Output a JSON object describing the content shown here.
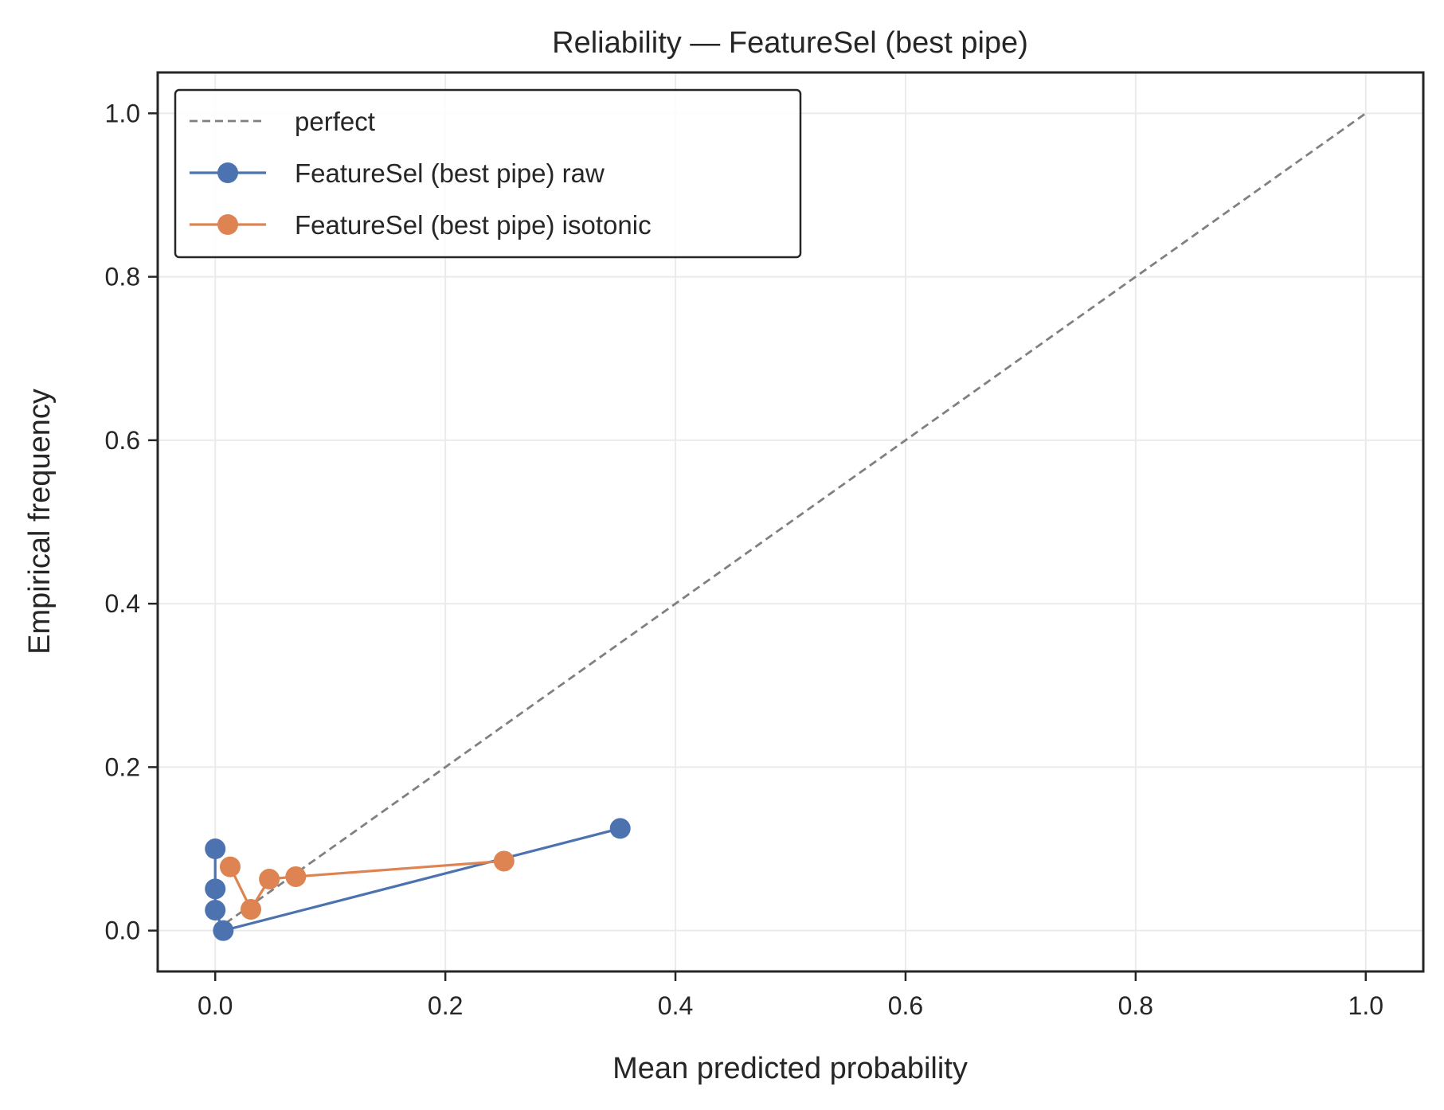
{
  "chart_data": {
    "type": "line",
    "title": "Reliability — FeatureSel (best pipe)",
    "xlabel": "Mean predicted probability",
    "ylabel": "Empirical frequency",
    "xlim": [
      -0.05,
      1.05
    ],
    "ylim": [
      -0.05,
      1.05
    ],
    "xticks": [
      "0.0",
      "0.2",
      "0.4",
      "0.6",
      "0.8",
      "1.0"
    ],
    "yticks": [
      "0.0",
      "0.2",
      "0.4",
      "0.6",
      "0.8",
      "1.0"
    ],
    "grid": true,
    "legend_position": "top-left",
    "series": [
      {
        "name": "perfect",
        "style": "dashed",
        "color": "#808080",
        "markers": false,
        "points": [
          [
            0.0,
            0.0
          ],
          [
            1.0,
            1.0
          ]
        ]
      },
      {
        "name": "FeatureSel (best pipe) raw",
        "style": "solid",
        "color": "#4c72b0",
        "markers": true,
        "points": [
          [
            0.0,
            0.1
          ],
          [
            0.0,
            0.051
          ],
          [
            0.0,
            0.025
          ],
          [
            0.007,
            0.0
          ],
          [
            0.352,
            0.125
          ]
        ]
      },
      {
        "name": "FeatureSel (best pipe) isotonic",
        "style": "solid",
        "color": "#dd8452",
        "markers": true,
        "points": [
          [
            0.013,
            0.078
          ],
          [
            0.031,
            0.026
          ],
          [
            0.047,
            0.063
          ],
          [
            0.07,
            0.066
          ],
          [
            0.251,
            0.085
          ]
        ]
      }
    ]
  }
}
